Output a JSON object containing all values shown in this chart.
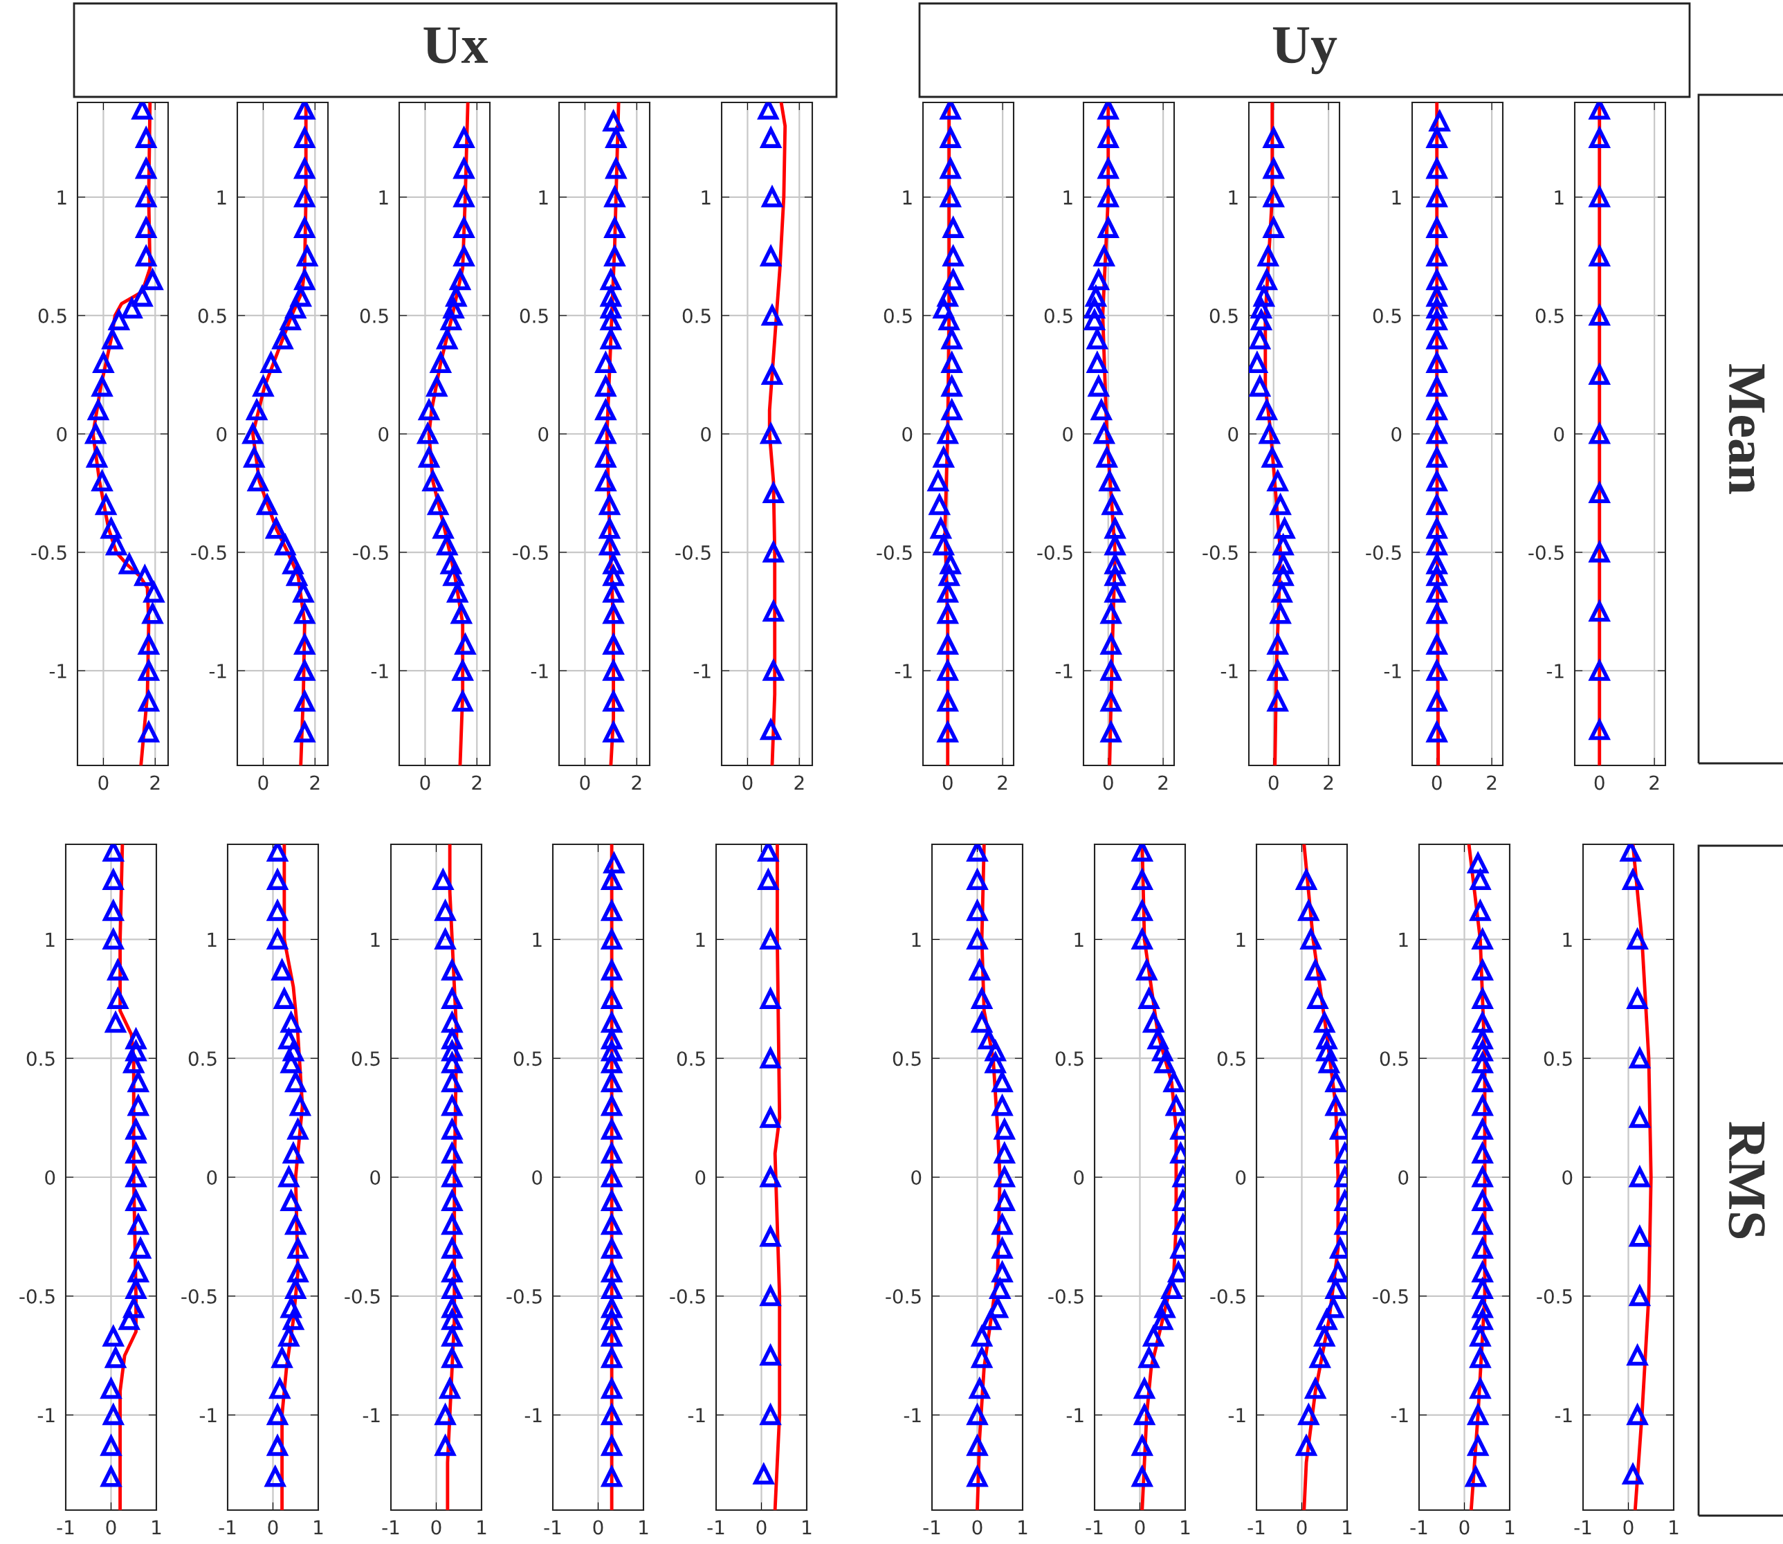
{
  "chart_data": [
    {
      "type": "line",
      "annotations": [
        "Ux"
      ],
      "xlim": [
        -1,
        2.5
      ],
      "ylim": [
        -1.4,
        1.4
      ],
      "xticks": [
        0,
        2
      ],
      "yticks": [
        -1,
        -0.5,
        0,
        0.5,
        1
      ],
      "grid": true,
      "series": [
        {
          "type": "line",
          "color": "#ff0000",
          "line_style": "solid",
          "x": [
            1.8,
            1.75,
            1.8,
            1.5,
            0.7,
            0.45,
            0.3,
            -0.1,
            -0.4,
            -0.15,
            0.2,
            0.5,
            0.9,
            1.4,
            1.7,
            1.75,
            1.7,
            1.45
          ],
          "values": [
            1.4,
            1.0,
            0.7,
            0.6,
            0.55,
            0.5,
            0.4,
            0.2,
            0,
            -0.2,
            -0.4,
            -0.5,
            -0.55,
            -0.6,
            -0.65,
            -0.8,
            -1.1,
            -1.4
          ]
        },
        {
          "type": "scatter",
          "color": "#0000ff",
          "marker": "triangle",
          "x": [
            1.5,
            1.65,
            1.65,
            1.65,
            1.65,
            1.65,
            1.9,
            1.5,
            1.1,
            0.6,
            0.35,
            0,
            -0.05,
            -0.2,
            -0.3,
            -0.25,
            -0.05,
            0.1,
            0.3,
            0.5,
            1.0,
            1.6,
            1.95,
            1.9,
            1.75,
            1.75,
            1.75,
            1.75
          ],
          "values": [
            1.37,
            1.25,
            1.12,
            1.0,
            0.87,
            0.75,
            0.65,
            0.58,
            0.53,
            0.48,
            0.4,
            0.3,
            0.2,
            0.1,
            0,
            -0.1,
            -0.2,
            -0.3,
            -0.4,
            -0.47,
            -0.55,
            -0.6,
            -0.67,
            -0.76,
            -0.89,
            -1.0,
            -1.13,
            -1.26
          ]
        }
      ]
    },
    {
      "type": "line",
      "xlim": [
        -1,
        2.5
      ],
      "ylim": [
        -1.4,
        1.4
      ],
      "xticks": [
        0,
        2
      ],
      "yticks": [
        -1,
        -0.5,
        0,
        0.5,
        1
      ],
      "grid": true,
      "series": [
        {
          "type": "line",
          "color": "#ff0000",
          "line_style": "solid",
          "x": [
            1.65,
            1.65,
            1.6,
            1.5,
            1.1,
            0.75,
            0.05,
            -0.4,
            -0.15,
            0.5,
            0.95,
            1.35,
            1.6,
            1.55,
            1.45
          ],
          "values": [
            1.4,
            1.0,
            0.7,
            0.6,
            0.5,
            0.4,
            0.2,
            0,
            -0.2,
            -0.4,
            -0.5,
            -0.6,
            -0.8,
            -1.1,
            -1.4
          ]
        },
        {
          "type": "scatter",
          "color": "#0000ff",
          "marker": "triangle",
          "x": [
            1.6,
            1.6,
            1.6,
            1.6,
            1.6,
            1.7,
            1.6,
            1.45,
            1.25,
            1.05,
            0.75,
            0.3,
            0,
            -0.25,
            -0.4,
            -0.35,
            -0.2,
            0.15,
            0.5,
            0.85,
            1.15,
            1.3,
            1.55,
            1.6,
            1.6,
            1.6,
            1.6,
            1.6
          ],
          "values": [
            1.37,
            1.25,
            1.12,
            1.0,
            0.87,
            0.75,
            0.65,
            0.58,
            0.53,
            0.48,
            0.4,
            0.3,
            0.2,
            0.1,
            0,
            -0.1,
            -0.2,
            -0.3,
            -0.4,
            -0.47,
            -0.55,
            -0.6,
            -0.67,
            -0.76,
            -0.89,
            -1.0,
            -1.13,
            -1.26
          ]
        }
      ]
    },
    {
      "type": "line",
      "xlim": [
        -1,
        2.5
      ],
      "ylim": [
        -1.4,
        1.4
      ],
      "xticks": [
        0,
        2
      ],
      "yticks": [
        -1,
        -0.5,
        0,
        0.5,
        1
      ],
      "grid": true,
      "series": [
        {
          "type": "line",
          "color": "#ff0000",
          "line_style": "solid",
          "x": [
            1.65,
            1.55,
            1.45,
            1.05,
            0.6,
            0.25,
            0.15,
            0.3,
            0.75,
            1.15,
            1.45,
            1.45,
            1.35
          ],
          "values": [
            1.4,
            1.0,
            0.7,
            0.5,
            0.3,
            0.1,
            0,
            -0.2,
            -0.4,
            -0.6,
            -0.8,
            -1.1,
            -1.4
          ]
        },
        {
          "type": "scatter",
          "color": "#0000ff",
          "marker": "triangle",
          "x": [
            1.5,
            1.5,
            1.5,
            1.5,
            1.5,
            1.35,
            1.2,
            1.1,
            1.0,
            0.85,
            0.6,
            0.45,
            0.15,
            0.1,
            0.15,
            0.3,
            0.5,
            0.7,
            0.85,
            1.0,
            1.1,
            1.25,
            1.4,
            1.55,
            1.45,
            1.45
          ],
          "values": [
            1.25,
            1.12,
            1.0,
            0.87,
            0.75,
            0.65,
            0.58,
            0.53,
            0.48,
            0.4,
            0.3,
            0.2,
            0.1,
            0,
            -0.1,
            -0.2,
            -0.3,
            -0.4,
            -0.47,
            -0.55,
            -0.6,
            -0.67,
            -0.76,
            -0.89,
            -1.0,
            -1.13
          ]
        }
      ]
    },
    {
      "type": "line",
      "xlim": [
        -1,
        2.5
      ],
      "ylim": [
        -1.4,
        1.4
      ],
      "xticks": [
        0,
        2
      ],
      "yticks": [
        -1,
        -0.5,
        0,
        0.5,
        1
      ],
      "grid": true,
      "series": [
        {
          "type": "line",
          "color": "#ff0000",
          "line_style": "solid",
          "x": [
            1.3,
            1.25,
            1.15,
            1.0,
            0.85,
            0.95,
            1.1,
            1.1,
            1.0
          ],
          "values": [
            1.4,
            1.2,
            0.8,
            0.4,
            0,
            -0.4,
            -0.8,
            -1.2,
            -1.4
          ]
        },
        {
          "type": "scatter",
          "color": "#0000ff",
          "marker": "triangle",
          "x": [
            1.1,
            1.2,
            1.2,
            1.15,
            1.15,
            1.15,
            1.0,
            1.0,
            1.0,
            1.0,
            1.0,
            0.8,
            0.8,
            0.8,
            0.8,
            0.8,
            0.8,
            0.95,
            0.95,
            0.95,
            1.1,
            1.1,
            1.1,
            1.1,
            1.1,
            1.1,
            1.1,
            1.1
          ],
          "values": [
            1.32,
            1.25,
            1.12,
            1.0,
            0.87,
            0.75,
            0.65,
            0.58,
            0.53,
            0.48,
            0.4,
            0.3,
            0.2,
            0.1,
            0,
            -0.1,
            -0.2,
            -0.3,
            -0.4,
            -0.47,
            -0.55,
            -0.6,
            -0.67,
            -0.76,
            -0.89,
            -1.0,
            -1.13,
            -1.26
          ]
        }
      ]
    },
    {
      "type": "line",
      "xlim": [
        -1,
        2.5
      ],
      "ylim": [
        -1.4,
        1.4
      ],
      "xticks": [
        0,
        2
      ],
      "yticks": [
        -1,
        -0.5,
        0,
        0.5,
        1
      ],
      "grid": true,
      "series": [
        {
          "type": "line",
          "color": "#ff0000",
          "line_style": "solid",
          "x": [
            1.3,
            1.45,
            1.4,
            1.25,
            1.05,
            0.85,
            0.85,
            1.0,
            1.05,
            1.05,
            1.05,
            0.95
          ],
          "values": [
            1.4,
            1.3,
            1.0,
            0.7,
            0.4,
            0.1,
            0,
            -0.2,
            -0.5,
            -0.8,
            -1.1,
            -1.4
          ]
        },
        {
          "type": "scatter",
          "color": "#0000ff",
          "marker": "triangle",
          "x": [
            0.8,
            0.9,
            0.95,
            0.9,
            0.95,
            0.95,
            0.9,
            1.0,
            1.0,
            1.0,
            1.0,
            0.9
          ],
          "values": [
            1.37,
            1.25,
            1.0,
            0.75,
            0.5,
            0.25,
            0,
            -0.25,
            -0.5,
            -0.75,
            -1.0,
            -1.25
          ]
        }
      ]
    },
    {
      "type": "line",
      "annotations": [
        "Uy"
      ],
      "xlim": [
        -0.9,
        2.4
      ],
      "ylim": [
        -1.4,
        1.4
      ],
      "xticks": [
        0,
        2
      ],
      "yticks": [
        -1,
        -0.5,
        0,
        0.5,
        1
      ],
      "grid": true,
      "series": [
        {
          "type": "line",
          "color": "#ff0000",
          "line_style": "solid",
          "x": [
            0.05,
            0.05,
            0,
            -0.1,
            0,
            0
          ],
          "values": [
            1.4,
            0.5,
            0,
            -0.4,
            -0.8,
            -1.4
          ]
        },
        {
          "type": "scatter",
          "color": "#0000ff",
          "marker": "triangle",
          "x": [
            0.1,
            0.1,
            0.1,
            0.1,
            0.2,
            0.2,
            0.2,
            0,
            -0.15,
            0.05,
            0.15,
            0.15,
            0.15,
            0.15,
            0,
            -0.15,
            -0.35,
            -0.3,
            -0.25,
            -0.15,
            0.1,
            0.05,
            0,
            0,
            0,
            0,
            0,
            0
          ],
          "values": [
            1.37,
            1.25,
            1.12,
            1.0,
            0.87,
            0.75,
            0.65,
            0.58,
            0.53,
            0.48,
            0.4,
            0.3,
            0.2,
            0.1,
            0,
            -0.1,
            -0.2,
            -0.3,
            -0.4,
            -0.47,
            -0.55,
            -0.6,
            -0.67,
            -0.76,
            -0.89,
            -1.0,
            -1.13,
            -1.26
          ]
        }
      ]
    },
    {
      "type": "line",
      "xlim": [
        -0.9,
        2.4
      ],
      "ylim": [
        -1.4,
        1.4
      ],
      "xticks": [
        0,
        2
      ],
      "yticks": [
        -1,
        -0.5,
        0,
        0.5,
        1
      ],
      "grid": true,
      "series": [
        {
          "type": "line",
          "color": "#ff0000",
          "line_style": "solid",
          "x": [
            0,
            0,
            -0.2,
            -0.05,
            0.25,
            0.15,
            0.05
          ],
          "values": [
            1.4,
            1.0,
            0.5,
            0,
            -0.5,
            -0.9,
            -1.4
          ]
        },
        {
          "type": "scatter",
          "color": "#0000ff",
          "marker": "triangle",
          "x": [
            0,
            0,
            0,
            0,
            0,
            -0.15,
            -0.35,
            -0.45,
            -0.5,
            -0.5,
            -0.4,
            -0.4,
            -0.35,
            -0.25,
            -0.15,
            -0.05,
            0.05,
            0.15,
            0.25,
            0.25,
            0.25,
            0.25,
            0.25,
            0.1,
            0.1,
            0.1,
            0.1,
            0.1
          ],
          "values": [
            1.37,
            1.25,
            1.12,
            1.0,
            0.87,
            0.75,
            0.65,
            0.58,
            0.53,
            0.48,
            0.4,
            0.3,
            0.2,
            0.1,
            0,
            -0.1,
            -0.2,
            -0.3,
            -0.4,
            -0.47,
            -0.55,
            -0.6,
            -0.67,
            -0.76,
            -0.89,
            -1.0,
            -1.13,
            -1.26
          ]
        }
      ]
    },
    {
      "type": "line",
      "xlim": [
        -0.9,
        2.4
      ],
      "ylim": [
        -1.4,
        1.4
      ],
      "xticks": [
        0,
        2
      ],
      "yticks": [
        -1,
        -0.5,
        0,
        0.5,
        1
      ],
      "grid": true,
      "series": [
        {
          "type": "line",
          "color": "#ff0000",
          "line_style": "solid",
          "x": [
            -0.05,
            -0.05,
            -0.3,
            -0.3,
            -0.1,
            0.25,
            0.1,
            0.05
          ],
          "values": [
            1.4,
            1.0,
            0.5,
            0.2,
            0,
            -0.5,
            -1.0,
            -1.4
          ]
        },
        {
          "type": "scatter",
          "color": "#0000ff",
          "marker": "triangle",
          "x": [
            0,
            0,
            0,
            0,
            -0.2,
            -0.25,
            -0.35,
            -0.45,
            -0.45,
            -0.5,
            -0.6,
            -0.5,
            -0.25,
            -0.15,
            -0.05,
            0.15,
            0.25,
            0.4,
            0.35,
            0.35,
            0.35,
            0.3,
            0.25,
            0.15,
            0.15,
            0.15
          ],
          "values": [
            1.25,
            1.12,
            1.0,
            0.87,
            0.75,
            0.65,
            0.58,
            0.53,
            0.48,
            0.4,
            0.3,
            0.2,
            0.1,
            0,
            -0.1,
            -0.2,
            -0.3,
            -0.4,
            -0.47,
            -0.55,
            -0.6,
            -0.67,
            -0.76,
            -0.89,
            -1.0,
            -1.13
          ]
        }
      ]
    },
    {
      "type": "line",
      "xlim": [
        -0.9,
        2.4
      ],
      "ylim": [
        -1.4,
        1.4
      ],
      "xticks": [
        0,
        2
      ],
      "yticks": [
        -1,
        -0.5,
        0,
        0.5,
        1
      ],
      "grid": true,
      "series": [
        {
          "type": "line",
          "color": "#ff0000",
          "line_style": "solid",
          "x": [
            0,
            0,
            0.05
          ],
          "values": [
            1.4,
            0,
            -1.4
          ]
        },
        {
          "type": "scatter",
          "color": "#0000ff",
          "marker": "triangle",
          "x": [
            0.1,
            0,
            0,
            0,
            0,
            0,
            0,
            0,
            0,
            0,
            0,
            0,
            0,
            0,
            0,
            0,
            0,
            0,
            0,
            0,
            0,
            0,
            0,
            0,
            0,
            0,
            0,
            0
          ],
          "values": [
            1.32,
            1.25,
            1.12,
            1.0,
            0.87,
            0.75,
            0.65,
            0.58,
            0.53,
            0.48,
            0.4,
            0.3,
            0.2,
            0.1,
            0,
            -0.1,
            -0.2,
            -0.3,
            -0.4,
            -0.47,
            -0.55,
            -0.6,
            -0.67,
            -0.76,
            -0.89,
            -1.0,
            -1.13,
            -1.26
          ]
        }
      ]
    },
    {
      "type": "line",
      "annotations": [
        "Mean"
      ],
      "xlim": [
        -0.9,
        2.4
      ],
      "ylim": [
        -1.4,
        1.4
      ],
      "xticks": [
        0,
        2
      ],
      "yticks": [
        -1,
        -0.5,
        0,
        0.5,
        1
      ],
      "grid": true,
      "series": [
        {
          "type": "line",
          "color": "#ff0000",
          "line_style": "solid",
          "x": [
            0,
            0
          ],
          "values": [
            1.4,
            -1.4
          ]
        },
        {
          "type": "scatter",
          "color": "#0000ff",
          "marker": "triangle",
          "x": [
            0,
            0,
            0,
            0,
            0,
            0,
            0,
            0,
            0,
            0,
            0,
            0
          ],
          "values": [
            1.37,
            1.25,
            1.0,
            0.75,
            0.5,
            0.25,
            0,
            -0.25,
            -0.5,
            -0.75,
            -1.0,
            -1.25
          ]
        }
      ]
    },
    {
      "type": "line",
      "xlim": [
        -1,
        1
      ],
      "ylim": [
        -1.4,
        1.4
      ],
      "xticks": [
        -1,
        0,
        1
      ],
      "yticks": [
        -1,
        -0.5,
        0,
        0.5,
        1
      ],
      "grid": true,
      "series": [
        {
          "type": "line",
          "color": "#ff0000",
          "line_style": "solid",
          "x": [
            0.25,
            0.2,
            0.2,
            0.45,
            0.5,
            0.5,
            0.55,
            0.55,
            0.3,
            0.2,
            0.2
          ],
          "values": [
            1.4,
            1.0,
            0.7,
            0.6,
            0.5,
            0,
            -0.5,
            -0.65,
            -0.75,
            -0.9,
            -1.4
          ]
        },
        {
          "type": "scatter",
          "color": "#0000ff",
          "marker": "triangle",
          "x": [
            0.05,
            0.05,
            0.05,
            0.05,
            0.15,
            0.15,
            0.1,
            0.55,
            0.55,
            0.5,
            0.6,
            0.6,
            0.55,
            0.55,
            0.55,
            0.55,
            0.6,
            0.65,
            0.6,
            0.55,
            0.5,
            0.4,
            0.05,
            0.1,
            0,
            0.05,
            0,
            0
          ],
          "values": [
            1.37,
            1.25,
            1.12,
            1.0,
            0.87,
            0.75,
            0.65,
            0.58,
            0.53,
            0.48,
            0.4,
            0.3,
            0.2,
            0.1,
            0,
            -0.1,
            -0.2,
            -0.3,
            -0.4,
            -0.47,
            -0.55,
            -0.6,
            -0.67,
            -0.76,
            -0.89,
            -1.0,
            -1.13,
            -1.26
          ]
        }
      ]
    },
    {
      "type": "line",
      "xlim": [
        -1,
        1
      ],
      "ylim": [
        -1.4,
        1.4
      ],
      "xticks": [
        -1,
        0,
        1
      ],
      "yticks": [
        -1,
        -0.5,
        0,
        0.5,
        1
      ],
      "grid": true,
      "series": [
        {
          "type": "line",
          "color": "#ff0000",
          "line_style": "solid",
          "x": [
            0.25,
            0.25,
            0.45,
            0.55,
            0.65,
            0.5,
            0.55,
            0.45,
            0.3,
            0.2,
            0.2
          ],
          "values": [
            1.4,
            1.0,
            0.8,
            0.6,
            0.3,
            0,
            -0.4,
            -0.6,
            -0.8,
            -1.0,
            -1.4
          ]
        },
        {
          "type": "scatter",
          "color": "#0000ff",
          "marker": "triangle",
          "x": [
            0.1,
            0.1,
            0.1,
            0.1,
            0.2,
            0.25,
            0.4,
            0.35,
            0.45,
            0.4,
            0.5,
            0.6,
            0.55,
            0.45,
            0.35,
            0.4,
            0.5,
            0.55,
            0.55,
            0.5,
            0.4,
            0.45,
            0.35,
            0.2,
            0.15,
            0.1,
            0.1,
            0.05
          ],
          "values": [
            1.37,
            1.25,
            1.12,
            1.0,
            0.87,
            0.75,
            0.65,
            0.58,
            0.53,
            0.48,
            0.4,
            0.3,
            0.2,
            0.1,
            0,
            -0.1,
            -0.2,
            -0.3,
            -0.4,
            -0.47,
            -0.55,
            -0.6,
            -0.67,
            -0.76,
            -0.89,
            -1.0,
            -1.13,
            -1.26
          ]
        }
      ]
    },
    {
      "type": "line",
      "xlim": [
        -1,
        1
      ],
      "ylim": [
        -1.4,
        1.4
      ],
      "xticks": [
        -1,
        0,
        1
      ],
      "yticks": [
        -1,
        -0.5,
        0,
        0.5,
        1
      ],
      "grid": true,
      "series": [
        {
          "type": "line",
          "color": "#ff0000",
          "line_style": "solid",
          "x": [
            0.3,
            0.3,
            0.35,
            0.45,
            0.4,
            0.4,
            0.3,
            0.25,
            0.25
          ],
          "values": [
            1.4,
            1.2,
            1.0,
            0.6,
            0,
            -0.6,
            -1.0,
            -1.2,
            -1.4
          ]
        },
        {
          "type": "scatter",
          "color": "#0000ff",
          "marker": "triangle",
          "x": [
            0.15,
            0.2,
            0.2,
            0.35,
            0.35,
            0.35,
            0.35,
            0.35,
            0.35,
            0.35,
            0.35,
            0.35,
            0.35,
            0.35,
            0.35,
            0.35,
            0.35,
            0.35,
            0.35,
            0.35,
            0.35,
            0.35,
            0.35,
            0.3,
            0.2,
            0.2
          ],
          "values": [
            1.25,
            1.12,
            1.0,
            0.87,
            0.75,
            0.65,
            0.58,
            0.53,
            0.48,
            0.4,
            0.3,
            0.2,
            0.1,
            0,
            -0.1,
            -0.2,
            -0.3,
            -0.4,
            -0.47,
            -0.55,
            -0.6,
            -0.67,
            -0.76,
            -0.89,
            -1.0,
            -1.13
          ]
        }
      ]
    },
    {
      "type": "line",
      "xlim": [
        -1,
        1
      ],
      "ylim": [
        -1.4,
        1.4
      ],
      "xticks": [
        -1,
        0,
        1
      ],
      "yticks": [
        -1,
        -0.5,
        0,
        0.5,
        1
      ],
      "grid": true,
      "series": [
        {
          "type": "line",
          "color": "#ff0000",
          "line_style": "solid",
          "x": [
            0.3,
            0.3
          ],
          "values": [
            1.4,
            -1.4
          ]
        },
        {
          "type": "scatter",
          "color": "#0000ff",
          "marker": "triangle",
          "x": [
            0.35,
            0.3,
            0.3,
            0.3,
            0.3,
            0.3,
            0.3,
            0.3,
            0.3,
            0.3,
            0.3,
            0.3,
            0.3,
            0.3,
            0.3,
            0.3,
            0.3,
            0.3,
            0.3,
            0.3,
            0.3,
            0.3,
            0.3,
            0.3,
            0.3,
            0.3,
            0.3,
            0.3
          ],
          "values": [
            1.32,
            1.25,
            1.12,
            1.0,
            0.87,
            0.75,
            0.65,
            0.58,
            0.53,
            0.48,
            0.4,
            0.3,
            0.2,
            0.1,
            0,
            -0.1,
            -0.2,
            -0.3,
            -0.4,
            -0.47,
            -0.55,
            -0.6,
            -0.67,
            -0.76,
            -0.89,
            -1.0,
            -1.13,
            -1.26
          ]
        }
      ]
    },
    {
      "type": "line",
      "xlim": [
        -1,
        1
      ],
      "ylim": [
        -1.4,
        1.4
      ],
      "xticks": [
        -1,
        0,
        1
      ],
      "yticks": [
        -1,
        -0.5,
        0,
        0.5,
        1
      ],
      "grid": true,
      "series": [
        {
          "type": "line",
          "color": "#ff0000",
          "line_style": "solid",
          "x": [
            0.35,
            0.35,
            0.4,
            0.3,
            0.4,
            0.4,
            0.35,
            0.3
          ],
          "values": [
            1.4,
            1.0,
            0.25,
            0.1,
            -0.5,
            -1.0,
            -1.2,
            -1.4
          ]
        },
        {
          "type": "scatter",
          "color": "#0000ff",
          "marker": "triangle",
          "x": [
            0.15,
            0.15,
            0.2,
            0.2,
            0.2,
            0.2,
            0.2,
            0.2,
            0.2,
            0.2,
            0.2,
            0.05
          ],
          "values": [
            1.37,
            1.25,
            1.0,
            0.75,
            0.5,
            0.25,
            0,
            -0.25,
            -0.5,
            -0.75,
            -1.0,
            -1.25
          ]
        }
      ]
    },
    {
      "type": "line",
      "xlim": [
        -1,
        1
      ],
      "ylim": [
        -1.4,
        1.4
      ],
      "xticks": [
        -1,
        0,
        1
      ],
      "yticks": [
        -1,
        -0.5,
        0,
        0.5,
        1
      ],
      "grid": true,
      "series": [
        {
          "type": "line",
          "color": "#ff0000",
          "line_style": "solid",
          "x": [
            0.15,
            0.1,
            0.15,
            0.35,
            0.45,
            0.5,
            0.45,
            0.3,
            0.15,
            0.05,
            0
          ],
          "values": [
            1.4,
            1.0,
            0.7,
            0.5,
            0.2,
            0,
            -0.4,
            -0.6,
            -0.8,
            -1.1,
            -1.4
          ]
        },
        {
          "type": "scatter",
          "color": "#0000ff",
          "marker": "triangle",
          "x": [
            0,
            0,
            0,
            0,
            0.05,
            0.1,
            0.1,
            0.25,
            0.4,
            0.4,
            0.55,
            0.55,
            0.6,
            0.6,
            0.6,
            0.6,
            0.55,
            0.55,
            0.55,
            0.5,
            0.45,
            0.3,
            0.1,
            0.1,
            0.05,
            0,
            0,
            0
          ],
          "values": [
            1.37,
            1.25,
            1.12,
            1.0,
            0.87,
            0.75,
            0.65,
            0.58,
            0.53,
            0.48,
            0.4,
            0.3,
            0.2,
            0.1,
            0,
            -0.1,
            -0.2,
            -0.3,
            -0.4,
            -0.47,
            -0.55,
            -0.6,
            -0.67,
            -0.76,
            -0.89,
            -1.0,
            -1.13,
            -1.26
          ]
        }
      ]
    },
    {
      "type": "line",
      "xlim": [
        -1,
        1
      ],
      "ylim": [
        -1.4,
        1.4
      ],
      "xticks": [
        -1,
        0,
        1
      ],
      "yticks": [
        -1,
        -0.5,
        0,
        0.5,
        1
      ],
      "grid": true,
      "series": [
        {
          "type": "line",
          "color": "#ff0000",
          "line_style": "solid",
          "x": [
            0.05,
            0.1,
            0.4,
            0.7,
            0.8,
            0.8,
            0.8,
            0.75,
            0.5,
            0.25,
            0.15,
            0.05
          ],
          "values": [
            1.4,
            1.0,
            0.6,
            0.4,
            0.2,
            0,
            -0.2,
            -0.4,
            -0.6,
            -0.8,
            -1.0,
            -1.4
          ]
        },
        {
          "type": "scatter",
          "color": "#0000ff",
          "marker": "triangle",
          "x": [
            0.05,
            0.05,
            0.05,
            0.05,
            0.15,
            0.2,
            0.3,
            0.4,
            0.5,
            0.55,
            0.75,
            0.8,
            0.9,
            0.9,
            0.95,
            0.95,
            0.95,
            0.9,
            0.85,
            0.7,
            0.55,
            0.5,
            0.3,
            0.2,
            0.1,
            0.1,
            0.05,
            0.05
          ],
          "values": [
            1.37,
            1.25,
            1.12,
            1.0,
            0.87,
            0.75,
            0.65,
            0.58,
            0.53,
            0.48,
            0.4,
            0.3,
            0.2,
            0.1,
            0,
            -0.1,
            -0.2,
            -0.3,
            -0.4,
            -0.47,
            -0.55,
            -0.6,
            -0.67,
            -0.76,
            -0.89,
            -1.0,
            -1.13,
            -1.26
          ]
        }
      ]
    },
    {
      "type": "line",
      "xlim": [
        -1,
        1
      ],
      "ylim": [
        -1.4,
        1.4
      ],
      "xticks": [
        -1,
        0,
        1
      ],
      "yticks": [
        -1,
        -0.5,
        0,
        0.5,
        1
      ],
      "grid": true,
      "series": [
        {
          "type": "line",
          "color": "#ff0000",
          "line_style": "solid",
          "x": [
            0.05,
            0.25,
            0.55,
            0.75,
            0.8,
            0.8,
            0.6,
            0.3,
            0.1,
            0.05
          ],
          "values": [
            1.4,
            1.0,
            0.6,
            0.3,
            0,
            -0.3,
            -0.6,
            -0.9,
            -1.2,
            -1.4
          ]
        },
        {
          "type": "scatter",
          "color": "#0000ff",
          "marker": "triangle",
          "x": [
            0.1,
            0.15,
            0.2,
            0.3,
            0.35,
            0.5,
            0.55,
            0.55,
            0.6,
            0.75,
            0.75,
            0.85,
            0.95,
            0.95,
            0.95,
            0.95,
            0.85,
            0.8,
            0.75,
            0.7,
            0.55,
            0.5,
            0.4,
            0.3,
            0.15,
            0.1
          ],
          "values": [
            1.25,
            1.12,
            1.0,
            0.87,
            0.75,
            0.65,
            0.58,
            0.53,
            0.48,
            0.4,
            0.3,
            0.2,
            0.1,
            0,
            -0.1,
            -0.2,
            -0.3,
            -0.4,
            -0.47,
            -0.55,
            -0.6,
            -0.67,
            -0.76,
            -0.89,
            -1.0,
            -1.13
          ]
        }
      ]
    },
    {
      "type": "line",
      "xlim": [
        -1,
        1
      ],
      "ylim": [
        -1.4,
        1.4
      ],
      "xticks": [
        -1,
        0,
        1
      ],
      "yticks": [
        -1,
        -0.5,
        0,
        0.5,
        1
      ],
      "grid": true,
      "series": [
        {
          "type": "line",
          "color": "#ff0000",
          "line_style": "solid",
          "x": [
            0.1,
            0.35,
            0.45,
            0.45,
            0.45,
            0.3,
            0.15
          ],
          "values": [
            1.4,
            1.0,
            0.5,
            0,
            -0.5,
            -1.0,
            -1.4
          ]
        },
        {
          "type": "scatter",
          "color": "#0000ff",
          "marker": "triangle",
          "x": [
            0.3,
            0.35,
            0.35,
            0.4,
            0.4,
            0.4,
            0.4,
            0.4,
            0.4,
            0.4,
            0.4,
            0.4,
            0.4,
            0.4,
            0.4,
            0.4,
            0.4,
            0.4,
            0.4,
            0.4,
            0.4,
            0.4,
            0.35,
            0.35,
            0.35,
            0.3,
            0.3,
            0.25
          ],
          "values": [
            1.32,
            1.25,
            1.12,
            1.0,
            0.87,
            0.75,
            0.65,
            0.58,
            0.53,
            0.48,
            0.4,
            0.3,
            0.2,
            0.1,
            0,
            -0.1,
            -0.2,
            -0.3,
            -0.4,
            -0.47,
            -0.55,
            -0.6,
            -0.67,
            -0.76,
            -0.89,
            -1.0,
            -1.13,
            -1.26
          ]
        }
      ]
    },
    {
      "type": "line",
      "annotations": [
        "RMS"
      ],
      "xlim": [
        -1,
        1
      ],
      "ylim": [
        -1.4,
        1.4
      ],
      "xticks": [
        -1,
        0,
        1
      ],
      "yticks": [
        -1,
        -0.5,
        0,
        0.5,
        1
      ],
      "grid": true,
      "series": [
        {
          "type": "line",
          "color": "#ff0000",
          "line_style": "solid",
          "x": [
            0.1,
            0.3,
            0.45,
            0.5,
            0.45,
            0.3,
            0.15
          ],
          "values": [
            1.4,
            1.0,
            0.5,
            0,
            -0.5,
            -1.0,
            -1.4
          ]
        },
        {
          "type": "scatter",
          "color": "#0000ff",
          "marker": "triangle",
          "x": [
            0.05,
            0.1,
            0.2,
            0.2,
            0.25,
            0.25,
            0.25,
            0.25,
            0.25,
            0.2,
            0.2,
            0.1
          ],
          "values": [
            1.37,
            1.25,
            1.0,
            0.75,
            0.5,
            0.25,
            0,
            -0.25,
            -0.5,
            -0.75,
            -1.0,
            -1.25
          ]
        }
      ]
    }
  ]
}
